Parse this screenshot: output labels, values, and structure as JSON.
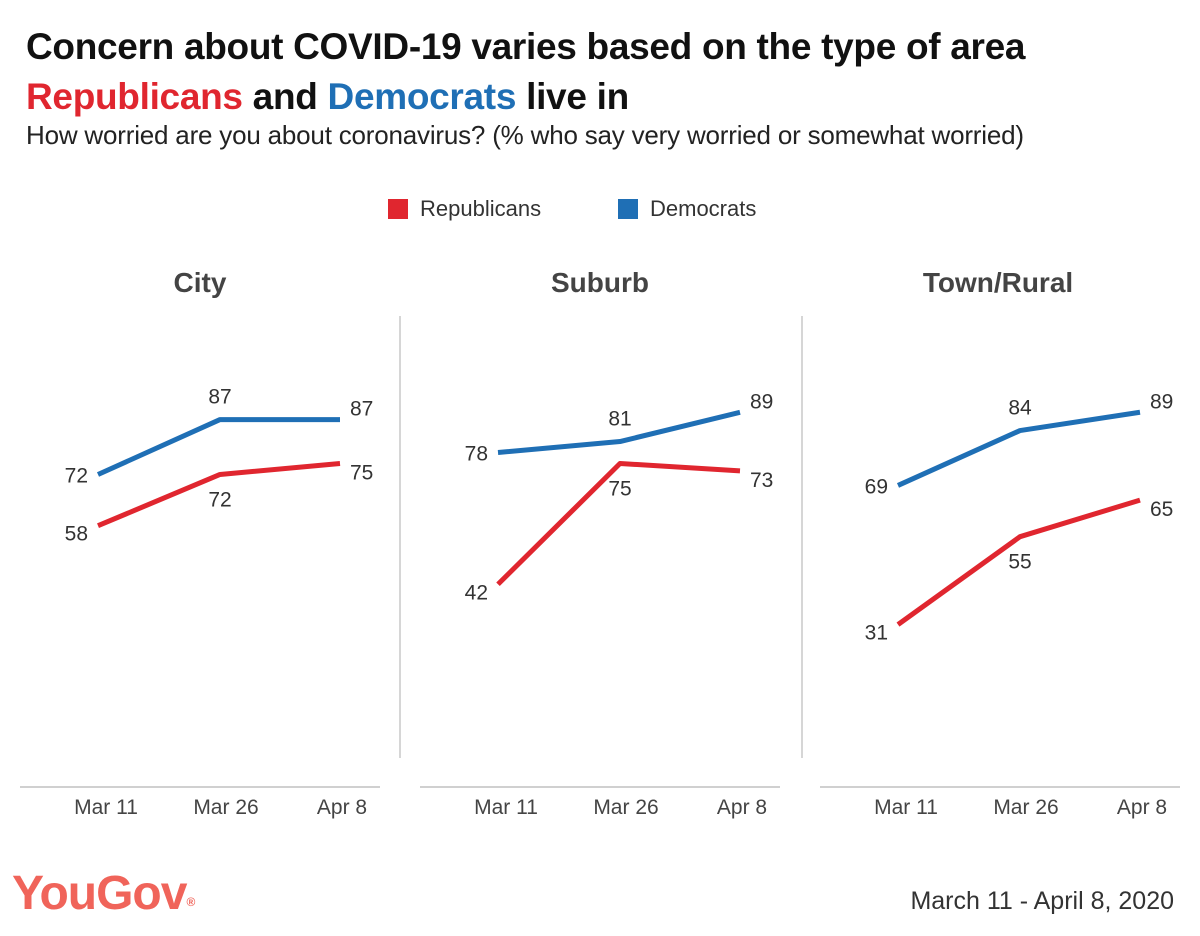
{
  "title": {
    "line1": "Concern about COVID-19 varies based on the type of area",
    "republicans": "Republicans",
    "and": " and ",
    "democrats": "Democrats",
    "live_in": " live in"
  },
  "subtitle": "How worried are you about coronavirus? (% who say very worried or somewhat worried)",
  "colors": {
    "republicans": "#e0262f",
    "democrats": "#1f6fb5",
    "brand": "#f0645a"
  },
  "legend": [
    {
      "name": "Republicans",
      "color": "#e0262f"
    },
    {
      "name": "Democrats",
      "color": "#1f6fb5"
    }
  ],
  "chart_data": [
    {
      "type": "line",
      "title": "City",
      "categories": [
        "Mar 11",
        "Mar 26",
        "Apr 8"
      ],
      "series": [
        {
          "name": "Republicans",
          "values": [
            58,
            72,
            75
          ]
        },
        {
          "name": "Democrats",
          "values": [
            72,
            87,
            87
          ]
        }
      ],
      "ylim": [
        15,
        100
      ],
      "grid": false
    },
    {
      "type": "line",
      "title": "Suburb",
      "categories": [
        "Mar 11",
        "Mar 26",
        "Apr 8"
      ],
      "series": [
        {
          "name": "Republicans",
          "values": [
            42,
            75,
            73
          ]
        },
        {
          "name": "Democrats",
          "values": [
            78,
            81,
            89
          ]
        }
      ],
      "ylim": [
        15,
        100
      ],
      "grid": false
    },
    {
      "type": "line",
      "title": "Town/Rural",
      "categories": [
        "Mar 11",
        "Mar 26",
        "Apr 8"
      ],
      "series": [
        {
          "name": "Republicans",
          "values": [
            31,
            55,
            65
          ]
        },
        {
          "name": "Democrats",
          "values": [
            69,
            84,
            89
          ]
        }
      ],
      "ylim": [
        15,
        100
      ],
      "grid": false
    }
  ],
  "footer": {
    "brand": "YouGov",
    "brand_mark": "®",
    "date_range": "March 11 - April 8, 2020"
  }
}
